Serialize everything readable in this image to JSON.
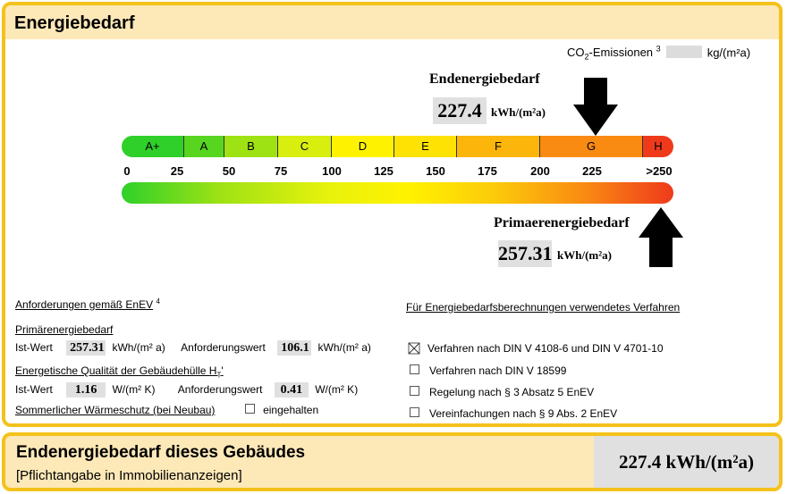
{
  "header": {
    "title": "Energiebedarf"
  },
  "co2": {
    "label_pre": "CO",
    "label_sub": "2",
    "label_post": "-Emissionen",
    "footnote": "3",
    "unit": "kg/(m²a)"
  },
  "endenergie": {
    "label": "Endenergiebedarf",
    "value": "227.4",
    "unit": "kWh/(m²a)"
  },
  "primaerenergie": {
    "label": "Primaerenergiebedarf",
    "value": "257.31",
    "unit": "kWh/(m²a)"
  },
  "scale": {
    "classes": [
      {
        "label": "A+",
        "color": "#2fd02a",
        "width": 70
      },
      {
        "label": "A",
        "color": "#58d51f",
        "width": 45
      },
      {
        "label": "B",
        "color": "#9fe214",
        "width": 60
      },
      {
        "label": "C",
        "color": "#d7ee0e",
        "width": 60
      },
      {
        "label": "D",
        "color": "#fff200",
        "width": 70
      },
      {
        "label": "E",
        "color": "#fde204",
        "width": 70
      },
      {
        "label": "F",
        "color": "#fcb50b",
        "width": 93
      },
      {
        "label": "G",
        "color": "#f98a12",
        "width": 115
      },
      {
        "label": "H",
        "color": "#ee3a1b",
        "width": 34
      }
    ],
    "ticks": [
      "0",
      "25",
      "50",
      "75",
      "100",
      "125",
      "150",
      "175",
      "200",
      "225",
      ">250"
    ]
  },
  "anforderungen": {
    "title": "Anforderungen gemäß EnEV",
    "footnote": "4",
    "primaer_title": "Primärenergiebedarf",
    "ist_label": "Ist-Wert",
    "ist_value": "257.31",
    "ist_unit": "kWh/(m² a)",
    "anf_label": "Anforderungswert",
    "anf_value": "106.1",
    "anf_unit": "kWh/(m² a)",
    "ht_title_pre": "Energetische Qualität der Gebäudehülle H",
    "ht_title_sub": "T",
    "ht_title_post": "'",
    "ht_ist_label": "Ist-Wert",
    "ht_ist_value": "1.16",
    "ht_ist_unit": "W/(m² K)",
    "ht_anf_label": "Anforderungswert",
    "ht_anf_value": "0.41",
    "ht_anf_unit": "W/(m² K)",
    "sommer_title": "Sommerlicher Wärmeschutz (bei Neubau)",
    "sommer_check": "eingehalten"
  },
  "verfahren": {
    "title": "Für Energiebedarfsberechnungen verwendetes Verfahren",
    "items": [
      {
        "label": "Verfahren nach DIN V 4108-6 und DIN V 4701-10",
        "checked": true
      },
      {
        "label": "Verfahren nach DIN V 18599",
        "checked": false
      },
      {
        "label": "Regelung nach § 3 Absatz 5 EnEV",
        "checked": false
      },
      {
        "label": "Vereinfachungen nach § 9 Abs. 2 EnEV",
        "checked": false
      }
    ]
  },
  "footer": {
    "title": "Endenergiebedarf dieses Gebäudes",
    "subtitle": "[Pflichtangabe in Immobilienanzeigen]",
    "value": "227.4 kWh/(m²a)"
  }
}
